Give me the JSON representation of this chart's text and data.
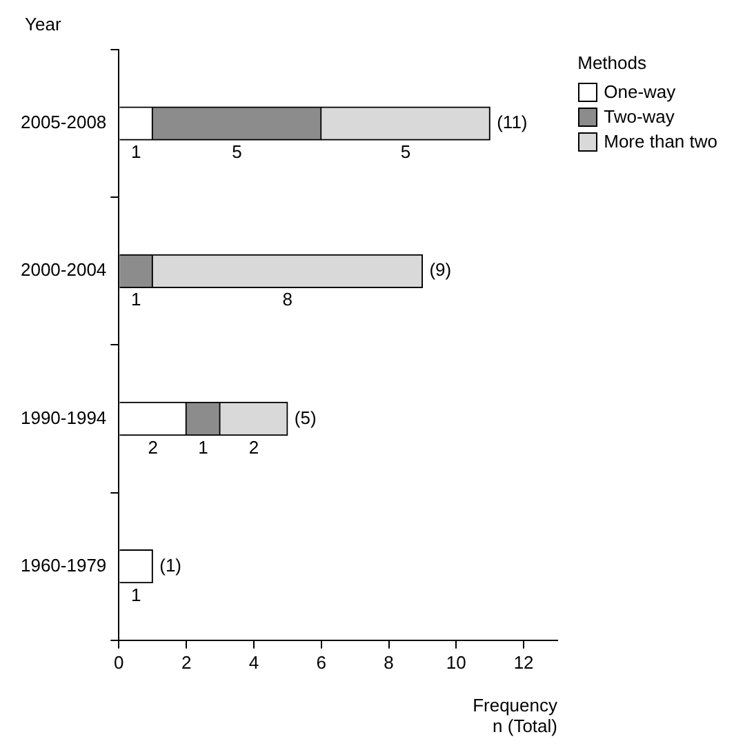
{
  "chart_data": {
    "type": "bar",
    "orientation": "horizontal",
    "stacked": true,
    "categories": [
      "2005-2008",
      "2000-2004",
      "1990-1994",
      "1960-1979"
    ],
    "series": [
      {
        "name": "One-way",
        "color": "#ffffff",
        "values": [
          1,
          0,
          2,
          1
        ],
        "value_labels": [
          "1",
          null,
          "2",
          "1"
        ]
      },
      {
        "name": "Two-way",
        "color": "#8c8c8c",
        "values": [
          5,
          1,
          1,
          0
        ],
        "value_labels": [
          "5",
          "1",
          "1",
          null
        ]
      },
      {
        "name": "More than two",
        "color": "#d9d9d9",
        "values": [
          5,
          8,
          2,
          0
        ],
        "value_labels": [
          "5",
          "8",
          "2",
          null
        ]
      }
    ],
    "totals": [
      "(11)",
      "(9)",
      "(5)",
      "(1)"
    ],
    "xlim": [
      0,
      13
    ],
    "xticks": [
      0,
      2,
      4,
      6,
      8,
      10,
      12
    ],
    "ylabel": "Year",
    "xlabel": "Frequency\nn (Total)",
    "legend_title": "Methods",
    "legend": "top right",
    "grid": false
  }
}
